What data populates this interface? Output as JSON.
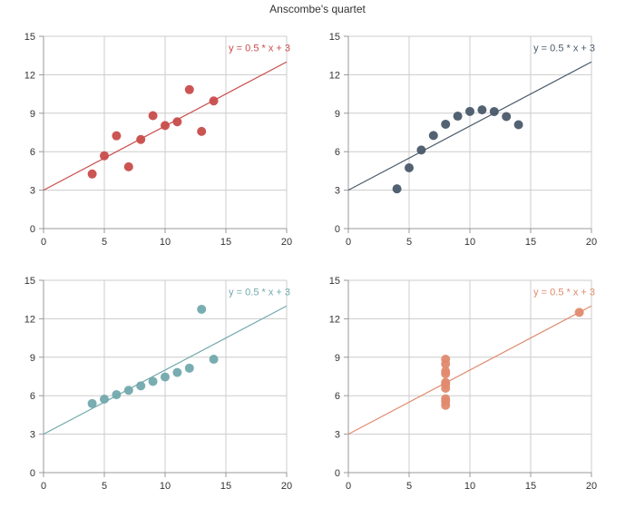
{
  "title": "Anscombe's quartet",
  "chart_data": [
    {
      "type": "scatter",
      "title": "",
      "xlabel": "",
      "ylabel": "",
      "xlim": [
        0,
        20
      ],
      "ylim": [
        0,
        15
      ],
      "xticks": [
        0,
        5,
        10,
        15,
        20
      ],
      "yticks": [
        0,
        3,
        6,
        9,
        12,
        15
      ],
      "grid": true,
      "color": "#c84c4a",
      "line": {
        "slope": 0.5,
        "intercept": 3,
        "label": "y = 0.5 * x + 3"
      },
      "x": [
        10,
        8,
        13,
        9,
        11,
        14,
        6,
        4,
        12,
        7,
        5
      ],
      "y": [
        8.04,
        6.95,
        7.58,
        8.81,
        8.33,
        9.96,
        7.24,
        4.26,
        10.84,
        4.82,
        5.68
      ]
    },
    {
      "type": "scatter",
      "title": "",
      "xlabel": "",
      "ylabel": "",
      "xlim": [
        0,
        20
      ],
      "ylim": [
        0,
        15
      ],
      "xticks": [
        0,
        5,
        10,
        15,
        20
      ],
      "yticks": [
        0,
        3,
        6,
        9,
        12,
        15
      ],
      "grid": true,
      "color": "#4a5a6a",
      "line": {
        "slope": 0.5,
        "intercept": 3,
        "label": "y = 0.5 * x + 3"
      },
      "x": [
        10,
        8,
        13,
        9,
        11,
        14,
        6,
        4,
        12,
        7,
        5
      ],
      "y": [
        9.14,
        8.14,
        8.74,
        8.77,
        9.26,
        8.1,
        6.13,
        3.1,
        9.13,
        7.26,
        4.74
      ]
    },
    {
      "type": "scatter",
      "title": "",
      "xlabel": "",
      "ylabel": "",
      "xlim": [
        0,
        20
      ],
      "ylim": [
        0,
        15
      ],
      "xticks": [
        0,
        5,
        10,
        15,
        20
      ],
      "yticks": [
        0,
        3,
        6,
        9,
        12,
        15
      ],
      "grid": true,
      "color": "#72a9ad",
      "line": {
        "slope": 0.5,
        "intercept": 3,
        "label": "y = 0.5 * x + 3"
      },
      "x": [
        10,
        8,
        13,
        9,
        11,
        14,
        6,
        4,
        12,
        7,
        5
      ],
      "y": [
        7.46,
        6.77,
        12.74,
        7.11,
        7.81,
        8.84,
        6.08,
        5.39,
        8.15,
        6.42,
        5.73
      ]
    },
    {
      "type": "scatter",
      "title": "",
      "xlabel": "",
      "ylabel": "",
      "xlim": [
        0,
        20
      ],
      "ylim": [
        0,
        15
      ],
      "xticks": [
        0,
        5,
        10,
        15,
        20
      ],
      "yticks": [
        0,
        3,
        6,
        9,
        12,
        15
      ],
      "grid": true,
      "color": "#e08a6e",
      "line": {
        "slope": 0.5,
        "intercept": 3,
        "label": "y = 0.5 * x + 3"
      },
      "x": [
        8,
        8,
        8,
        8,
        8,
        8,
        8,
        19,
        8,
        8,
        8
      ],
      "y": [
        6.58,
        5.76,
        7.71,
        8.84,
        8.47,
        7.04,
        5.25,
        12.5,
        5.56,
        7.91,
        6.89
      ]
    }
  ]
}
